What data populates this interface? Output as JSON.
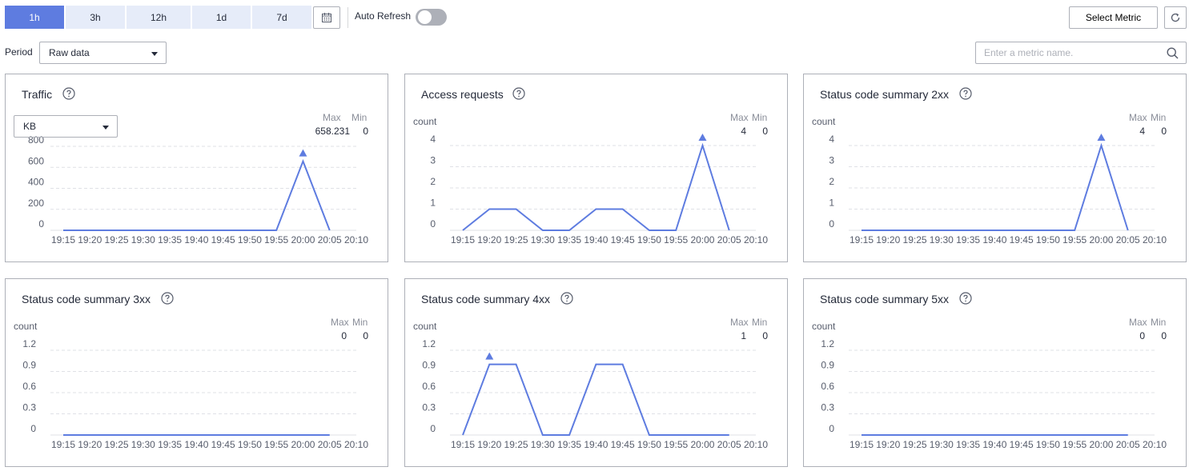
{
  "toolbar": {
    "ranges": [
      "1h",
      "3h",
      "12h",
      "1d",
      "7d"
    ],
    "active_range": "1h",
    "auto_refresh_label": "Auto Refresh",
    "auto_refresh_on": false,
    "select_metric_label": "Select Metric"
  },
  "filters": {
    "period_label": "Period",
    "period_value": "Raw data",
    "search_placeholder": "Enter a metric name."
  },
  "icons": {
    "calendar": "calendar-icon",
    "refresh": "refresh-icon",
    "search": "search-icon",
    "help": "help-circle-icon",
    "dropdown": "chevron-down-icon"
  },
  "colors": {
    "accent": "#5e7ce0",
    "range_inactive_bg": "#e6ecf9",
    "series_line": "#5e7ce0",
    "grid": "#dfe1e6",
    "border": "#adb0b8"
  },
  "cards": [
    {
      "title": "Traffic",
      "unit": "KB",
      "unit_is_select": true,
      "max_label": "Max",
      "min_label": "Min",
      "max_value": "658.231",
      "min_value": "0"
    },
    {
      "title": "Access requests",
      "unit": "count",
      "unit_is_select": false,
      "max_label": "Max",
      "min_label": "Min",
      "max_value": "4",
      "min_value": "0"
    },
    {
      "title": "Status code summary 2xx",
      "unit": "count",
      "unit_is_select": false,
      "max_label": "Max",
      "min_label": "Min",
      "max_value": "4",
      "min_value": "0"
    },
    {
      "title": "Status code summary 3xx",
      "unit": "count",
      "unit_is_select": false,
      "max_label": "Max",
      "min_label": "Min",
      "max_value": "0",
      "min_value": "0"
    },
    {
      "title": "Status code summary 4xx",
      "unit": "count",
      "unit_is_select": false,
      "max_label": "Max",
      "min_label": "Min",
      "max_value": "1",
      "min_value": "0"
    },
    {
      "title": "Status code summary 5xx",
      "unit": "count",
      "unit_is_select": false,
      "max_label": "Max",
      "min_label": "Min",
      "max_value": "0",
      "min_value": "0"
    }
  ],
  "chart_data": [
    {
      "type": "line",
      "title": "Traffic",
      "ylabel": "KB",
      "x": [
        "19:15",
        "19:20",
        "19:25",
        "19:30",
        "19:35",
        "19:40",
        "19:45",
        "19:50",
        "19:55",
        "20:00",
        "20:05",
        "20:10"
      ],
      "y_ticks": [
        "800",
        "600",
        "400",
        "200",
        "0"
      ],
      "ylim": [
        0,
        800
      ],
      "series": [
        {
          "values": [
            0,
            0,
            0,
            0,
            0,
            0,
            0,
            0,
            0,
            658.231,
            0,
            null
          ]
        }
      ],
      "max_marker_at": "20:00",
      "grid": true
    },
    {
      "type": "line",
      "title": "Access requests",
      "ylabel": "count",
      "x": [
        "19:15",
        "19:20",
        "19:25",
        "19:30",
        "19:35",
        "19:40",
        "19:45",
        "19:50",
        "19:55",
        "20:00",
        "20:05",
        "20:10"
      ],
      "y_ticks": [
        "4",
        "3",
        "2",
        "1",
        "0"
      ],
      "ylim": [
        0,
        4
      ],
      "series": [
        {
          "values": [
            0,
            1,
            1,
            0,
            0,
            1,
            1,
            0,
            0,
            4,
            0,
            null
          ]
        }
      ],
      "max_marker_at": "20:00",
      "grid": true
    },
    {
      "type": "line",
      "title": "Status code summary 2xx",
      "ylabel": "count",
      "x": [
        "19:15",
        "19:20",
        "19:25",
        "19:30",
        "19:35",
        "19:40",
        "19:45",
        "19:50",
        "19:55",
        "20:00",
        "20:05",
        "20:10"
      ],
      "y_ticks": [
        "4",
        "3",
        "2",
        "1",
        "0"
      ],
      "ylim": [
        0,
        4
      ],
      "series": [
        {
          "values": [
            0,
            0,
            0,
            0,
            0,
            0,
            0,
            0,
            0,
            4,
            0,
            null
          ]
        }
      ],
      "max_marker_at": "20:00",
      "grid": true
    },
    {
      "type": "line",
      "title": "Status code summary 3xx",
      "ylabel": "count",
      "x": [
        "19:15",
        "19:20",
        "19:25",
        "19:30",
        "19:35",
        "19:40",
        "19:45",
        "19:50",
        "19:55",
        "20:00",
        "20:05",
        "20:10"
      ],
      "y_ticks": [
        "1.2",
        "0.9",
        "0.6",
        "0.3",
        "0"
      ],
      "ylim": [
        0,
        1.2
      ],
      "series": [
        {
          "values": [
            0,
            0,
            0,
            0,
            0,
            0,
            0,
            0,
            0,
            0,
            0,
            null
          ]
        }
      ],
      "max_marker_at": null,
      "grid": true
    },
    {
      "type": "line",
      "title": "Status code summary 4xx",
      "ylabel": "count",
      "x": [
        "19:15",
        "19:20",
        "19:25",
        "19:30",
        "19:35",
        "19:40",
        "19:45",
        "19:50",
        "19:55",
        "20:00",
        "20:05",
        "20:10"
      ],
      "y_ticks": [
        "1.2",
        "0.9",
        "0.6",
        "0.3",
        "0"
      ],
      "ylim": [
        0,
        1.2
      ],
      "series": [
        {
          "values": [
            0,
            1,
            1,
            0,
            0,
            1,
            1,
            0,
            0,
            0,
            0,
            null
          ]
        }
      ],
      "max_marker_at": "19:20",
      "grid": true
    },
    {
      "type": "line",
      "title": "Status code summary 5xx",
      "ylabel": "count",
      "x": [
        "19:15",
        "19:20",
        "19:25",
        "19:30",
        "19:35",
        "19:40",
        "19:45",
        "19:50",
        "19:55",
        "20:00",
        "20:05",
        "20:10"
      ],
      "y_ticks": [
        "1.2",
        "0.9",
        "0.6",
        "0.3",
        "0"
      ],
      "ylim": [
        0,
        1.2
      ],
      "series": [
        {
          "values": [
            0,
            0,
            0,
            0,
            0,
            0,
            0,
            0,
            0,
            0,
            0,
            null
          ]
        }
      ],
      "max_marker_at": null,
      "grid": true
    }
  ]
}
